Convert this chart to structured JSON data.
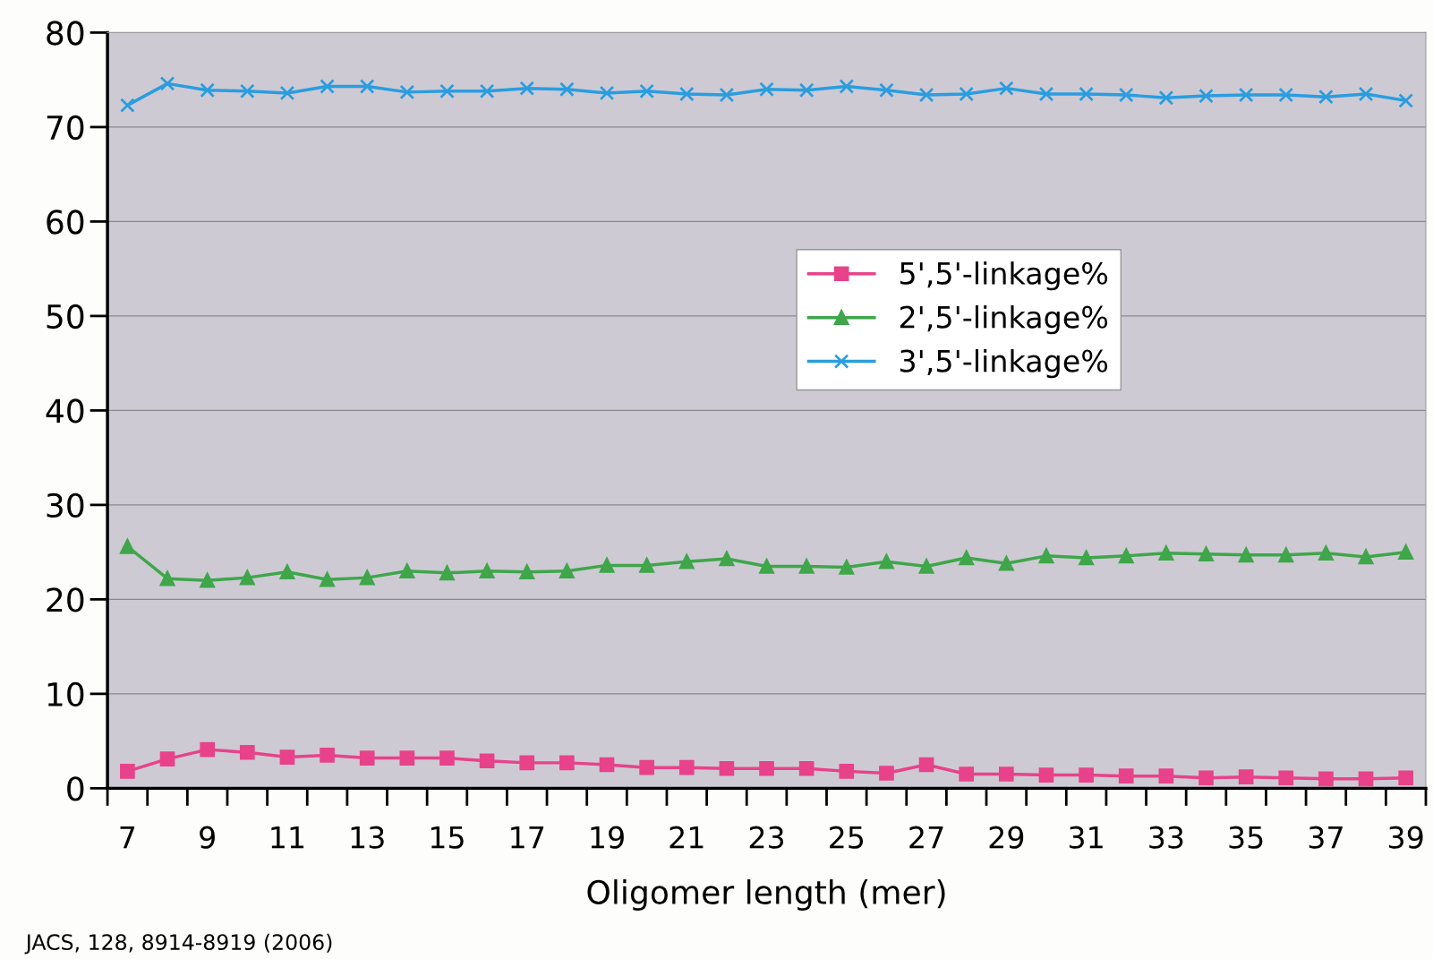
{
  "chart_data": {
    "type": "line",
    "xlabel": "Oligomer length (mer)",
    "categories": [
      "7",
      null,
      "9",
      null,
      "11",
      null,
      "13",
      null,
      "15",
      null,
      "17",
      null,
      "19",
      null,
      "21",
      null,
      "23",
      null,
      "25",
      null,
      "27",
      null,
      "29",
      null,
      "31",
      null,
      "33",
      null,
      "35",
      null,
      "37",
      null,
      "39"
    ],
    "series": [
      {
        "name": "5',5'-linkage%",
        "color": "#e8428a",
        "marker": "square",
        "values": [
          1.8,
          3.1,
          4.1,
          3.8,
          3.3,
          3.5,
          3.2,
          3.2,
          3.2,
          2.9,
          2.7,
          2.7,
          2.5,
          2.2,
          2.2,
          2.1,
          2.1,
          2.1,
          1.8,
          1.6,
          2.5,
          1.5,
          1.5,
          1.4,
          1.4,
          1.3,
          1.3,
          1.1,
          1.2,
          1.1,
          1.0,
          1.0,
          1.1
        ]
      },
      {
        "name": "2',5'-linkage%",
        "color": "#3fa64a",
        "marker": "triangle",
        "values": [
          25.6,
          22.2,
          22.0,
          22.3,
          22.9,
          22.1,
          22.3,
          23.0,
          22.8,
          23.0,
          22.9,
          23.0,
          23.6,
          23.6,
          24.0,
          24.3,
          23.5,
          23.5,
          23.4,
          24.0,
          23.5,
          24.4,
          23.8,
          24.6,
          24.4,
          24.6,
          24.9,
          24.8,
          24.7,
          24.7,
          24.9,
          24.5,
          25.0
        ]
      },
      {
        "name": "3',5'-linkage%",
        "color": "#2a9de0",
        "marker": "cross",
        "values": [
          72.3,
          74.6,
          73.9,
          73.8,
          73.6,
          74.3,
          74.3,
          73.7,
          73.8,
          73.8,
          74.1,
          74.0,
          73.6,
          73.8,
          73.5,
          73.4,
          74.0,
          73.9,
          74.3,
          73.9,
          73.4,
          73.5,
          74.1,
          73.5,
          73.5,
          73.4,
          73.1,
          73.3,
          73.4,
          73.4,
          73.2,
          73.5,
          72.8
        ]
      }
    ],
    "ylim": [
      0,
      80
    ],
    "yticks": [
      0,
      10,
      20,
      30,
      40,
      50,
      60,
      70,
      80
    ],
    "grid": "y",
    "legend": "center right",
    "annotations": [
      "JACS, 128, 8914-8919 (2006)"
    ]
  }
}
